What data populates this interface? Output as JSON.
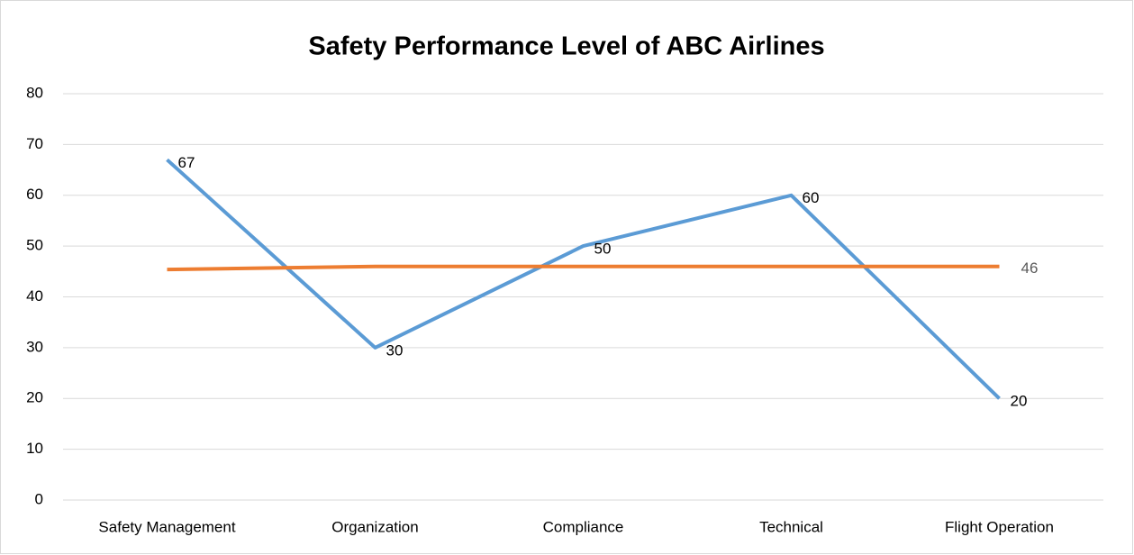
{
  "chart_data": {
    "type": "line",
    "title": "Safety Performance Level of ABC Airlines",
    "categories": [
      "Safety Management",
      "Organization",
      "Compliance",
      "Technical",
      "Flight Operation"
    ],
    "series": [
      {
        "color": "#5b9bd5",
        "values": [
          67,
          30,
          50,
          60,
          20
        ]
      },
      {
        "color": "#ed7d31",
        "values": [
          45.4,
          46,
          46,
          46,
          46
        ],
        "value_labels": [
          null,
          null,
          null,
          null,
          "46"
        ]
      }
    ],
    "ylim": [
      0,
      80
    ],
    "yticks": [
      0,
      10,
      20,
      30,
      40,
      50,
      60,
      70,
      80
    ],
    "grid": true
  }
}
